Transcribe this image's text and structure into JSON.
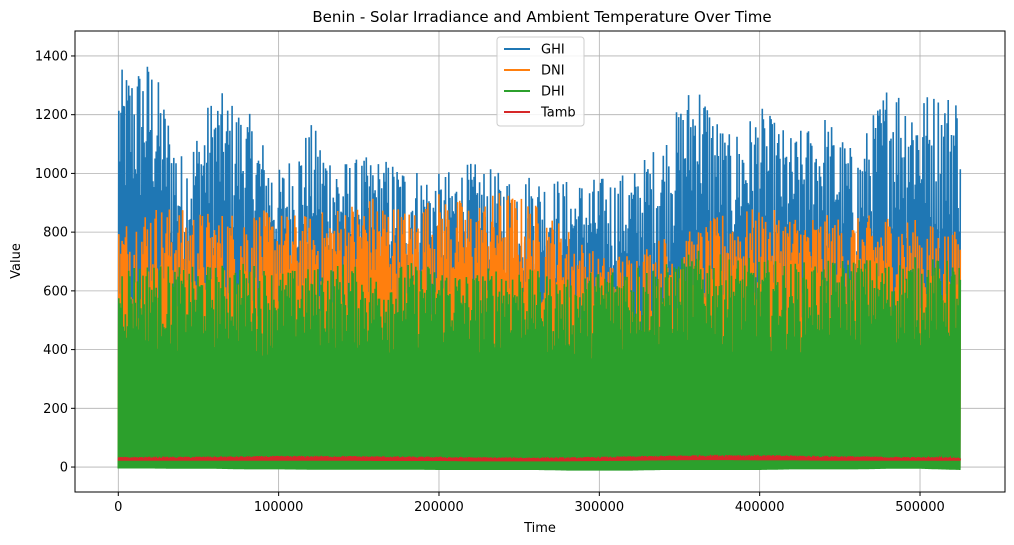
{
  "chart_data": {
    "type": "line",
    "title": "Benin - Solar Irradiance and Ambient Temperature Over Time",
    "xlabel": "Time",
    "ylabel": "Value",
    "xlim": [
      -27000,
      553000
    ],
    "ylim": [
      -85,
      1485
    ],
    "xticks": [
      0,
      100000,
      200000,
      300000,
      400000,
      500000
    ],
    "xtick_labels": [
      "0",
      "100000",
      "200000",
      "300000",
      "400000",
      "500000"
    ],
    "yticks": [
      0,
      200,
      400,
      600,
      800,
      1000,
      1200,
      1400
    ],
    "ytick_labels": [
      "0",
      "200",
      "400",
      "600",
      "800",
      "1000",
      "1200",
      "1400"
    ],
    "grid": true,
    "legend_position": "top-center",
    "series": [
      {
        "name": "GHI",
        "color": "#1f77b4",
        "x": [
          0,
          20000,
          40000,
          60000,
          80000,
          100000,
          120000,
          140000,
          160000,
          180000,
          200000,
          220000,
          240000,
          260000,
          280000,
          300000,
          320000,
          340000,
          360000,
          380000,
          400000,
          420000,
          440000,
          460000,
          480000,
          500000,
          525000
        ],
        "low": [
          -5,
          -5,
          -5,
          -5,
          -5,
          -5,
          -5,
          -5,
          -5,
          -5,
          -5,
          -5,
          -5,
          -5,
          -5,
          -5,
          -5,
          -5,
          -5,
          -5,
          -5,
          -5,
          -5,
          -5,
          -5,
          -5,
          -5
        ],
        "high": [
          1350,
          1400,
          1060,
          1290,
          1220,
          1020,
          1170,
          1050,
          1060,
          1040,
          1000,
          1040,
          1000,
          1010,
          980,
          990,
          1010,
          1130,
          1350,
          1130,
          1230,
          1130,
          1210,
          1070,
          1330,
          1280,
          1290
        ]
      },
      {
        "name": "DNI",
        "color": "#ff7f0e",
        "x": [
          0,
          20000,
          40000,
          60000,
          80000,
          100000,
          120000,
          140000,
          160000,
          180000,
          200000,
          220000,
          240000,
          260000,
          280000,
          300000,
          320000,
          340000,
          360000,
          380000,
          400000,
          420000,
          440000,
          460000,
          480000,
          500000,
          525000
        ],
        "low": [
          -3,
          -3,
          -3,
          -3,
          -3,
          -3,
          -3,
          -3,
          -3,
          -3,
          -3,
          -3,
          -3,
          -3,
          -3,
          -3,
          -3,
          -3,
          -3,
          -3,
          -3,
          -3,
          -3,
          -3,
          -3,
          -3,
          -3
        ],
        "high": [
          830,
          900,
          880,
          870,
          880,
          870,
          860,
          900,
          930,
          880,
          940,
          900,
          950,
          900,
          820,
          720,
          740,
          790,
          810,
          880,
          880,
          870,
          860,
          850,
          870,
          840,
          800
        ]
      },
      {
        "name": "DHI",
        "color": "#2ca02c",
        "x": [
          0,
          20000,
          40000,
          60000,
          80000,
          100000,
          120000,
          140000,
          160000,
          180000,
          200000,
          220000,
          240000,
          260000,
          280000,
          300000,
          320000,
          340000,
          360000,
          380000,
          400000,
          420000,
          440000,
          460000,
          480000,
          500000,
          525000
        ],
        "low": [
          -5,
          -5,
          -6,
          -6,
          -8,
          -8,
          -9,
          -9,
          -9,
          -9,
          -10,
          -10,
          -10,
          -10,
          -12,
          -12,
          -12,
          -10,
          -10,
          -10,
          -10,
          -8,
          -8,
          -8,
          -6,
          -6,
          -10
        ],
        "high": [
          700,
          700,
          680,
          690,
          700,
          670,
          680,
          700,
          660,
          700,
          690,
          660,
          700,
          670,
          640,
          680,
          700,
          690,
          740,
          720,
          710,
          700,
          700,
          720,
          700,
          720,
          700
        ]
      },
      {
        "name": "Tamb",
        "color": "#d62728",
        "x": [
          0,
          20000,
          40000,
          60000,
          80000,
          100000,
          120000,
          140000,
          160000,
          180000,
          200000,
          220000,
          240000,
          260000,
          280000,
          300000,
          320000,
          340000,
          360000,
          380000,
          400000,
          420000,
          440000,
          460000,
          480000,
          500000,
          525000
        ],
        "low": [
          22,
          22,
          22,
          22,
          22,
          22,
          22,
          22,
          21,
          21,
          21,
          20,
          20,
          20,
          20,
          21,
          22,
          23,
          24,
          24,
          23,
          23,
          22,
          22,
          22,
          22,
          22
        ],
        "high": [
          34,
          35,
          35,
          36,
          37,
          38,
          38,
          38,
          37,
          36,
          35,
          34,
          33,
          33,
          33,
          35,
          37,
          39,
          41,
          42,
          41,
          40,
          38,
          37,
          35,
          34,
          33
        ]
      }
    ]
  }
}
